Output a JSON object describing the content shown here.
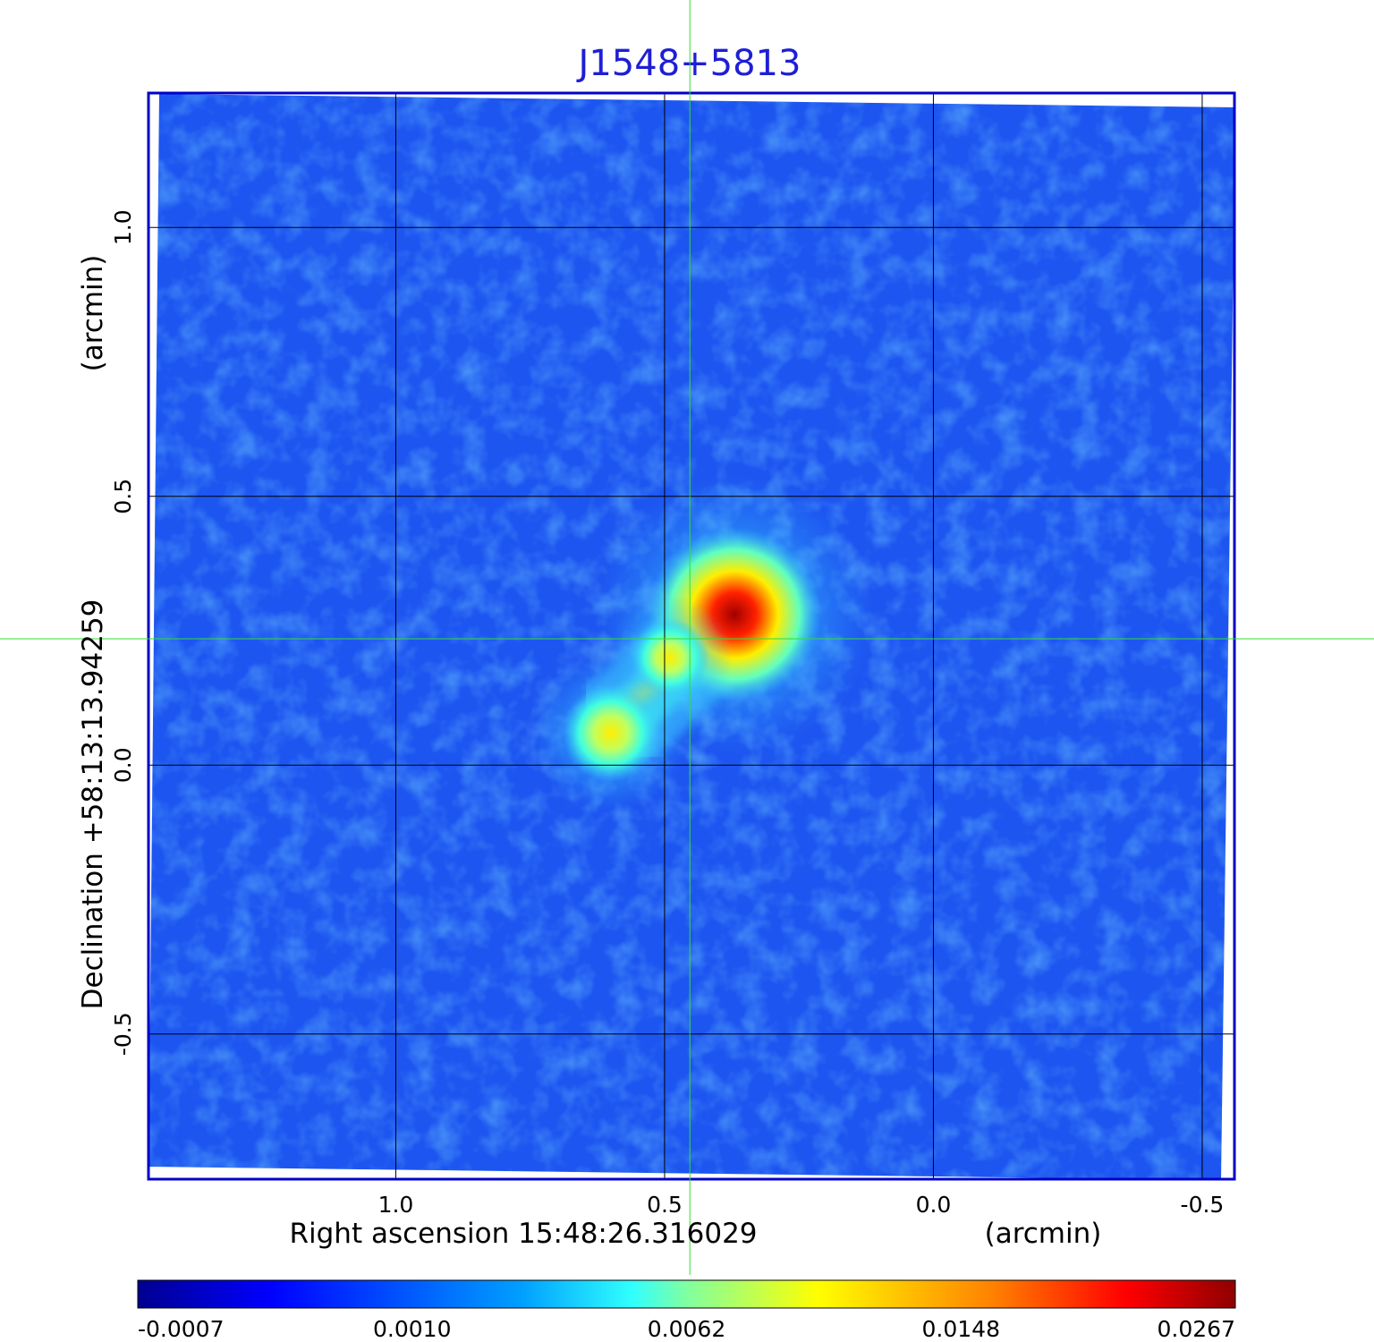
{
  "chart_data": {
    "type": "heatmap",
    "title": "J1548+5813",
    "xlabel": "Right ascension  15:48:26.316029",
    "xunit": "(arcmin)",
    "ylabel": "Declination  +58:13:13.94259",
    "yunit": "(arcmin)",
    "x_ticks": [
      "1.0",
      "0.5",
      "0.0",
      "-0.5"
    ],
    "y_ticks": [
      "1.0",
      "0.5",
      "0.0",
      "-0.5"
    ],
    "x_tick_values": [
      1.0,
      0.5,
      0.0,
      -0.5
    ],
    "y_tick_values": [
      1.0,
      0.5,
      0.0,
      -0.5
    ],
    "xlim": [
      1.46,
      -0.56
    ],
    "ylim": [
      -0.77,
      1.25
    ],
    "grid": true,
    "crosshair": {
      "x": 0.453,
      "y": 0.235
    },
    "colorbar": {
      "ticks": [
        "-0.0007",
        "0.0010",
        "0.0062",
        "0.0148",
        "0.0267"
      ],
      "colormap": "jet"
    },
    "sources": [
      {
        "x": 0.37,
        "y": 0.28,
        "peak": 0.0267
      },
      {
        "x": 0.6,
        "y": 0.06,
        "peak": 0.011
      },
      {
        "x": 0.49,
        "y": 0.2,
        "peak": 0.007
      }
    ],
    "colors": {
      "title": "#1e1ed6",
      "frame": "#0000c8",
      "crosshair": "#33dd33",
      "grid": "#000000"
    }
  }
}
